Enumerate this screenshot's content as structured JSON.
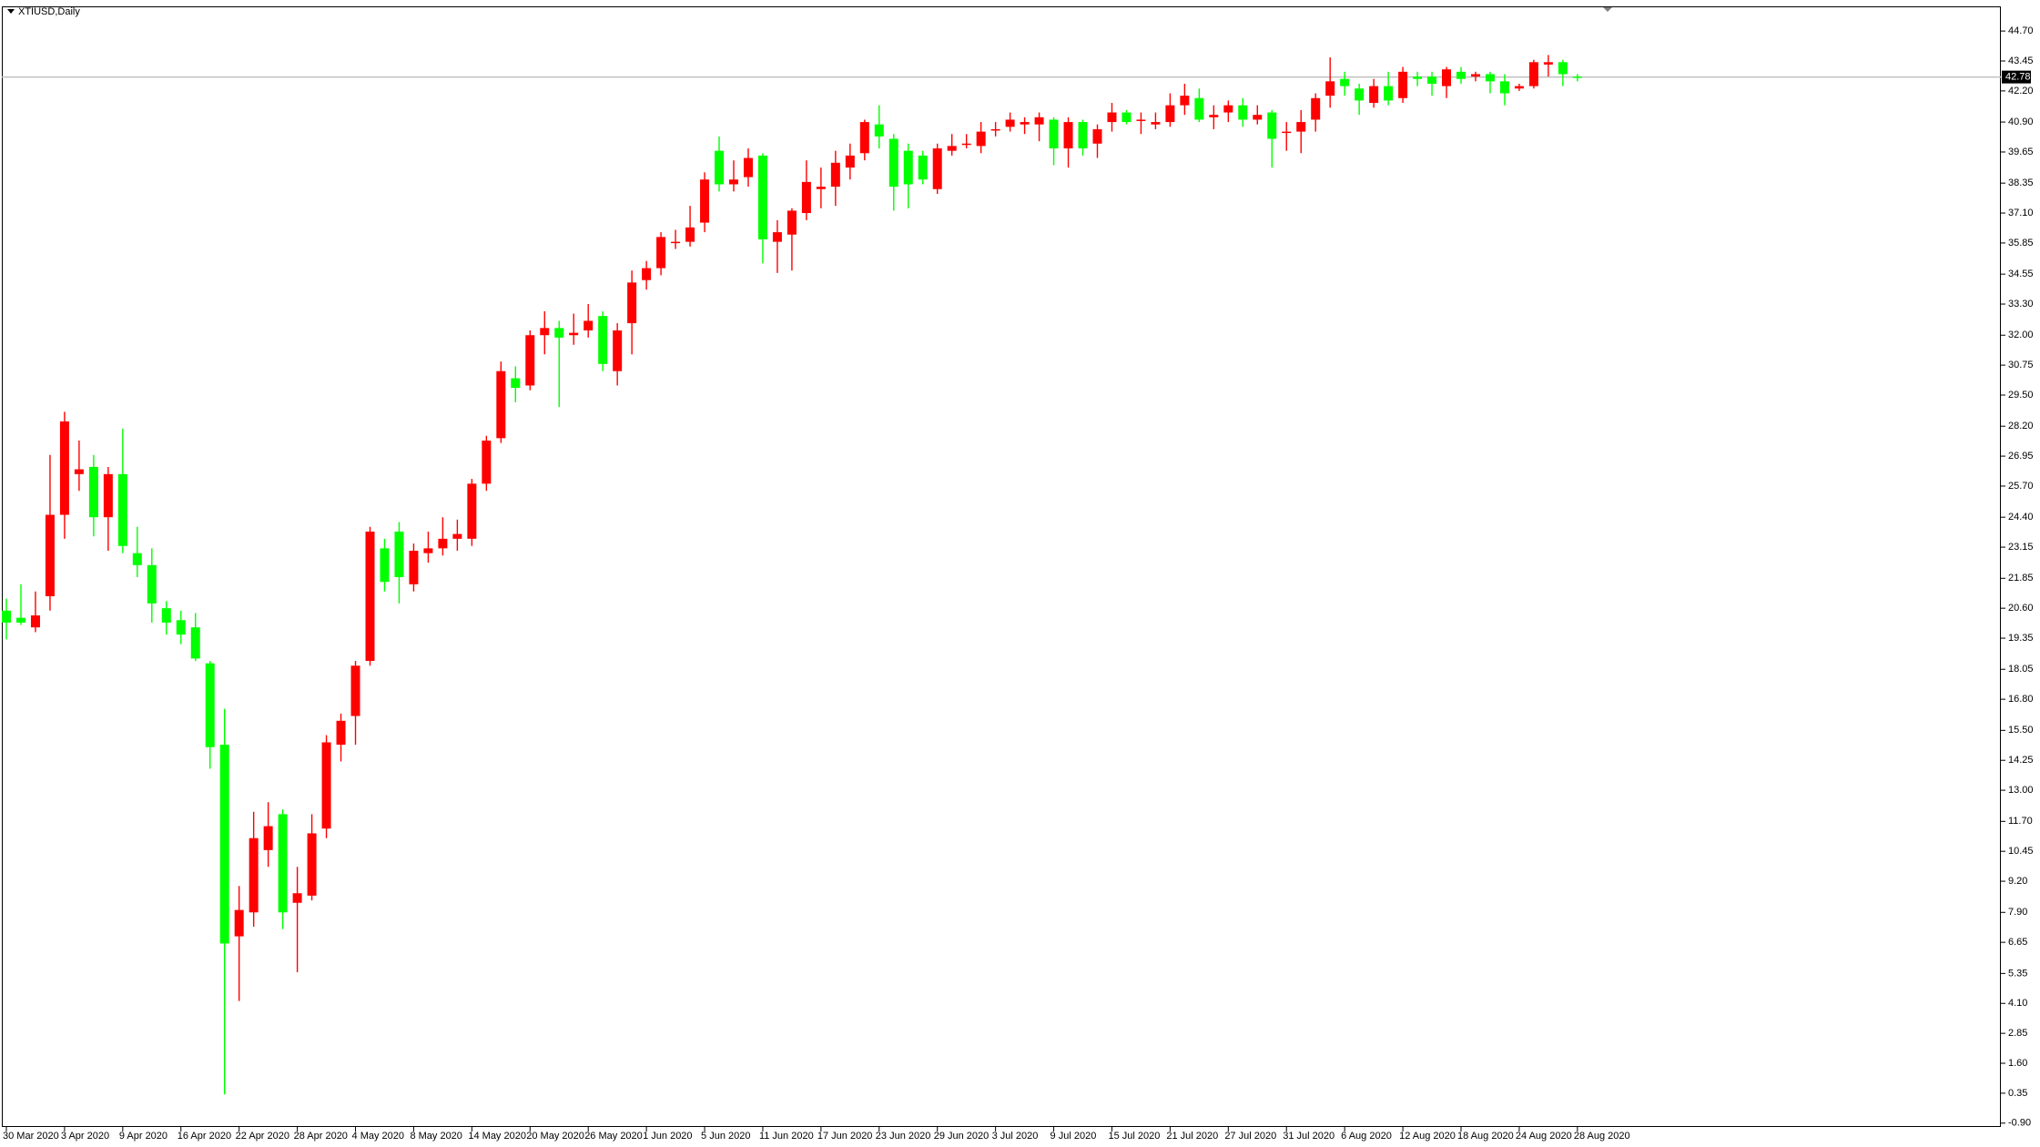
{
  "chart_data": {
    "type": "candlestick",
    "title": "XTIUSD,Daily",
    "categories": [
      "30 Mar 2020",
      null,
      null,
      null,
      "3 Apr 2020",
      null,
      null,
      null,
      "9 Apr 2020",
      null,
      null,
      null,
      "16 Apr 2020",
      null,
      null,
      null,
      "22 Apr 2020",
      null,
      null,
      null,
      "28 Apr 2020",
      null,
      null,
      null,
      "4 May 2020",
      null,
      null,
      null,
      "8 May 2020",
      null,
      null,
      null,
      "14 May 2020",
      null,
      null,
      null,
      "20 May 2020",
      null,
      null,
      null,
      "26 May 2020",
      null,
      null,
      null,
      "1 Jun 2020",
      null,
      null,
      null,
      "5 Jun 2020",
      null,
      null,
      null,
      "11 Jun 2020",
      null,
      null,
      null,
      "17 Jun 2020",
      null,
      null,
      null,
      "23 Jun 2020",
      null,
      null,
      null,
      "29 Jun 2020",
      null,
      null,
      null,
      "3 Jul 2020",
      null,
      null,
      null,
      "9 Jul 2020",
      null,
      null,
      null,
      "15 Jul 2020",
      null,
      null,
      null,
      "21 Jul 2020",
      null,
      null,
      null,
      "27 Jul 2020",
      null,
      null,
      null,
      "31 Jul 2020",
      null,
      null,
      null,
      "6 Aug 2020",
      null,
      null,
      null,
      "12 Aug 2020",
      null,
      null,
      null,
      "18 Aug 2020",
      null,
      null,
      null,
      "24 Aug 2020",
      null,
      null,
      null,
      "28 Aug 2020"
    ],
    "open": [
      20.5,
      20.2,
      19.8,
      21.1,
      24.5,
      26.2,
      26.5,
      24.4,
      26.2,
      22.9,
      22.4,
      20.6,
      20.1,
      19.8,
      18.3,
      14.9,
      6.9,
      7.9,
      10.5,
      12.0,
      8.3,
      8.6,
      11.4,
      14.9,
      16.1,
      18.4,
      23.1,
      23.8,
      21.6,
      22.9,
      23.1,
      23.5,
      23.5,
      25.8,
      27.7,
      30.2,
      29.9,
      32.0,
      32.3,
      32.0,
      32.2,
      32.8,
      30.5,
      32.5,
      34.3,
      34.8,
      35.9,
      35.9,
      36.7,
      39.7,
      38.3,
      38.6,
      39.5,
      35.9,
      36.2,
      37.1,
      38.1,
      38.2,
      39.0,
      39.6,
      40.8,
      40.2,
      39.7,
      39.5,
      38.1,
      39.7,
      40.0,
      39.9,
      40.6,
      40.7,
      40.8,
      40.8,
      41.0,
      39.8,
      40.9,
      40.0,
      40.9,
      41.3,
      41.0,
      40.8,
      40.9,
      41.6,
      41.9,
      41.1,
      41.3,
      41.6,
      41.0,
      41.3,
      40.5,
      40.5,
      41.0,
      42.0,
      42.7,
      42.3,
      41.7,
      42.4,
      41.9,
      42.8,
      42.8,
      42.4,
      43.0,
      42.8,
      42.9,
      42.6,
      42.3,
      42.4,
      43.3,
      43.4,
      42.8
    ],
    "high": [
      21.0,
      21.6,
      21.3,
      27.0,
      28.8,
      27.6,
      27.0,
      26.5,
      28.1,
      24.0,
      23.1,
      20.9,
      20.5,
      20.4,
      18.4,
      16.4,
      9.0,
      12.1,
      12.5,
      12.2,
      9.8,
      12.0,
      15.3,
      16.2,
      18.4,
      24.0,
      23.5,
      24.2,
      23.3,
      23.8,
      24.4,
      24.3,
      26.0,
      27.8,
      30.9,
      30.7,
      32.2,
      33.0,
      32.6,
      32.9,
      33.3,
      33.0,
      32.5,
      34.7,
      35.1,
      36.3,
      36.4,
      37.4,
      38.8,
      40.3,
      39.3,
      39.8,
      39.6,
      36.8,
      37.3,
      39.3,
      39.0,
      39.7,
      40.0,
      41.0,
      41.6,
      40.4,
      40.0,
      39.7,
      40.0,
      40.4,
      40.4,
      40.9,
      40.9,
      41.3,
      41.1,
      41.3,
      41.1,
      41.1,
      41.0,
      40.8,
      41.7,
      41.4,
      41.3,
      41.3,
      42.1,
      42.5,
      42.3,
      41.6,
      41.8,
      41.9,
      41.6,
      41.4,
      40.9,
      41.4,
      42.1,
      43.6,
      43.0,
      42.5,
      42.7,
      43.0,
      43.2,
      43.0,
      43.0,
      43.2,
      43.2,
      43.0,
      43.0,
      42.9,
      42.5,
      43.5,
      43.7,
      43.5,
      42.9
    ],
    "low": [
      19.3,
      19.9,
      19.6,
      20.5,
      23.5,
      25.5,
      23.6,
      23.0,
      22.9,
      21.9,
      20.0,
      19.5,
      19.1,
      18.4,
      13.9,
      0.3,
      4.2,
      7.3,
      9.8,
      7.2,
      5.4,
      8.4,
      11.0,
      14.2,
      14.9,
      18.2,
      21.3,
      20.8,
      21.3,
      22.5,
      22.8,
      23.0,
      23.2,
      25.5,
      27.5,
      29.2,
      29.7,
      31.2,
      29.0,
      31.6,
      31.9,
      30.5,
      29.9,
      31.2,
      33.9,
      34.5,
      35.6,
      35.7,
      36.3,
      38.0,
      38.0,
      38.2,
      35.0,
      34.6,
      34.7,
      36.8,
      37.3,
      37.4,
      38.5,
      39.3,
      39.8,
      37.2,
      37.3,
      38.3,
      37.9,
      39.5,
      39.8,
      39.6,
      40.3,
      40.5,
      40.4,
      40.1,
      39.1,
      39.0,
      39.5,
      39.4,
      40.5,
      40.8,
      40.4,
      40.6,
      40.7,
      41.2,
      40.9,
      40.6,
      40.9,
      40.7,
      40.8,
      39.0,
      39.7,
      39.6,
      40.5,
      41.5,
      42.0,
      41.2,
      41.5,
      41.6,
      41.7,
      42.4,
      42.0,
      41.9,
      42.5,
      42.6,
      42.1,
      41.6,
      42.2,
      42.3,
      42.8,
      42.4,
      42.6
    ],
    "close": [
      20.0,
      20.0,
      20.3,
      24.5,
      28.4,
      26.4,
      24.4,
      26.2,
      23.2,
      22.4,
      20.8,
      20.0,
      19.5,
      18.5,
      14.8,
      6.6,
      8.0,
      11.0,
      11.5,
      7.9,
      8.7,
      11.2,
      15.0,
      15.9,
      18.2,
      23.8,
      21.7,
      21.9,
      23.0,
      23.1,
      23.5,
      23.7,
      25.8,
      27.6,
      30.5,
      29.8,
      32.0,
      32.3,
      31.9,
      32.1,
      32.6,
      30.8,
      32.2,
      34.2,
      34.8,
      36.1,
      35.9,
      36.5,
      38.5,
      38.3,
      38.5,
      39.4,
      36.0,
      36.3,
      37.2,
      38.4,
      38.2,
      39.2,
      39.5,
      40.9,
      40.3,
      38.2,
      38.3,
      38.5,
      39.8,
      39.9,
      40.0,
      40.5,
      40.6,
      41.0,
      40.9,
      41.1,
      39.8,
      40.9,
      39.8,
      40.6,
      41.3,
      40.9,
      41.0,
      40.9,
      41.6,
      42.0,
      41.0,
      41.2,
      41.6,
      41.0,
      41.2,
      40.2,
      40.5,
      40.9,
      41.9,
      42.6,
      42.4,
      41.8,
      42.4,
      41.8,
      43.0,
      42.7,
      42.5,
      43.1,
      42.7,
      42.9,
      42.6,
      42.1,
      42.4,
      43.4,
      43.4,
      42.9,
      42.78
    ],
    "up_color": "#ff0000",
    "down_color": "#00ff00",
    "last_price": 42.78,
    "last_price_color": "#c0c0c0",
    "ylim": [
      -1.06,
      45.73
    ],
    "yticks": [
      {
        "value": 44.7,
        "label": "44.70"
      },
      43.45,
      {
        "value": 42.2,
        "label": "42.20"
      },
      {
        "value": 40.9,
        "label": "40.90"
      },
      39.65,
      38.35,
      {
        "value": 37.1,
        "label": "37.10"
      },
      35.85,
      34.55,
      {
        "value": 33.3,
        "label": "33.30"
      },
      {
        "value": 32,
        "label": "32.00"
      },
      30.75,
      {
        "value": 29.5,
        "label": "29.50"
      },
      {
        "value": 28.2,
        "label": "28.20"
      },
      26.95,
      {
        "value": 25.7,
        "label": "25.70"
      },
      {
        "value": 24.4,
        "label": "24.40"
      },
      23.15,
      21.85,
      {
        "value": 20.6,
        "label": "20.60"
      },
      19.35,
      18.05,
      {
        "value": 16.8,
        "label": "16.80"
      },
      {
        "value": 15.5,
        "label": "15.50"
      },
      14.25,
      {
        "value": 13,
        "label": "13.00"
      },
      {
        "value": 11.7,
        "label": "11.70"
      },
      10.45,
      {
        "value": 9.2,
        "label": "9.20"
      },
      {
        "value": 7.9,
        "label": "7.90"
      },
      6.65,
      5.35,
      {
        "value": 4.1,
        "label": "4.10"
      },
      2.85,
      {
        "value": 1.6,
        "label": "1.60"
      },
      0.35,
      {
        "value": -0.9,
        "label": "-0.90"
      }
    ]
  }
}
